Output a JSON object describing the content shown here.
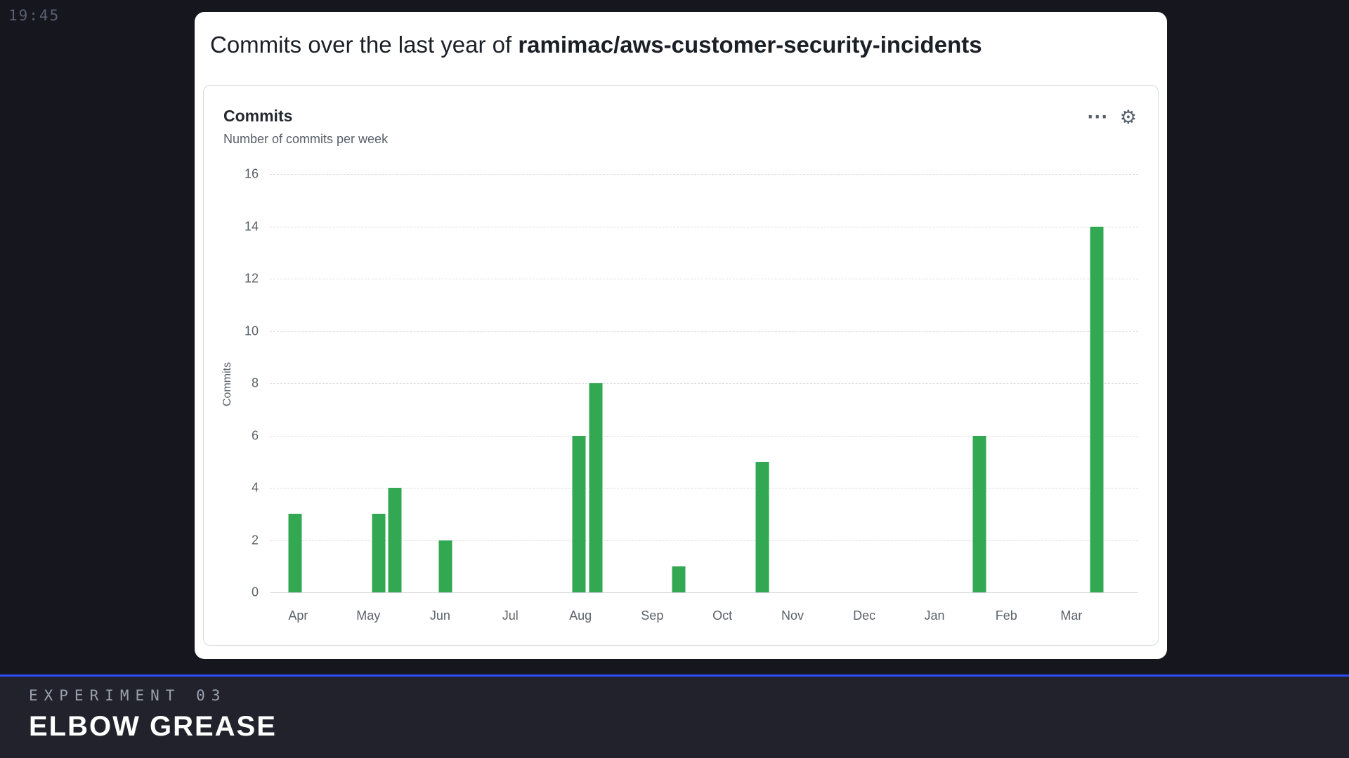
{
  "page": {
    "clock": "19:45"
  },
  "colors": {
    "background": "#16161f",
    "footer_background": "#22222c",
    "accent_blue": "#2b4eff",
    "bar_green": "#33a852"
  },
  "card": {
    "title_prefix": "Commits over the last year of ",
    "title_repo": "ramimac/aws-customer-security-incidents"
  },
  "panel": {
    "title": "Commits",
    "subtitle": "Number of commits per week",
    "icons": {
      "ellipsis": "⋯",
      "gear": "⚙"
    }
  },
  "chart_data": {
    "type": "bar",
    "title": "Commits",
    "subtitle": "Number of commits per week",
    "xlabel": "",
    "ylabel": "Commits",
    "ylim": [
      0,
      16
    ],
    "yticks": [
      0,
      2,
      4,
      6,
      8,
      10,
      12,
      14,
      16
    ],
    "grid": "dashed-horizontal",
    "legend": "none",
    "weeks": 52,
    "bar_color": "#33a852",
    "months": [
      {
        "label": "Apr",
        "week": 1.7
      },
      {
        "label": "May",
        "week": 5.9
      },
      {
        "label": "Jun",
        "week": 10.2
      },
      {
        "label": "Jul",
        "week": 14.4
      },
      {
        "label": "Aug",
        "week": 18.6
      },
      {
        "label": "Sep",
        "week": 22.9
      },
      {
        "label": "Oct",
        "week": 27.1
      },
      {
        "label": "Nov",
        "week": 31.3
      },
      {
        "label": "Dec",
        "week": 35.6
      },
      {
        "label": "Jan",
        "week": 39.8
      },
      {
        "label": "Feb",
        "week": 44.1
      },
      {
        "label": "Mar",
        "week": 48.0
      }
    ],
    "bars": [
      {
        "week": 1,
        "value": 3
      },
      {
        "week": 6,
        "value": 3
      },
      {
        "week": 7,
        "value": 4
      },
      {
        "week": 10,
        "value": 2
      },
      {
        "week": 18,
        "value": 6
      },
      {
        "week": 19,
        "value": 8
      },
      {
        "week": 24,
        "value": 1
      },
      {
        "week": 29,
        "value": 5
      },
      {
        "week": 42,
        "value": 6
      },
      {
        "week": 49,
        "value": 14
      }
    ]
  },
  "footer": {
    "kicker": "EXPERIMENT 03",
    "title": "ELBOW GREASE",
    "accent_color": "#2b4eff"
  }
}
